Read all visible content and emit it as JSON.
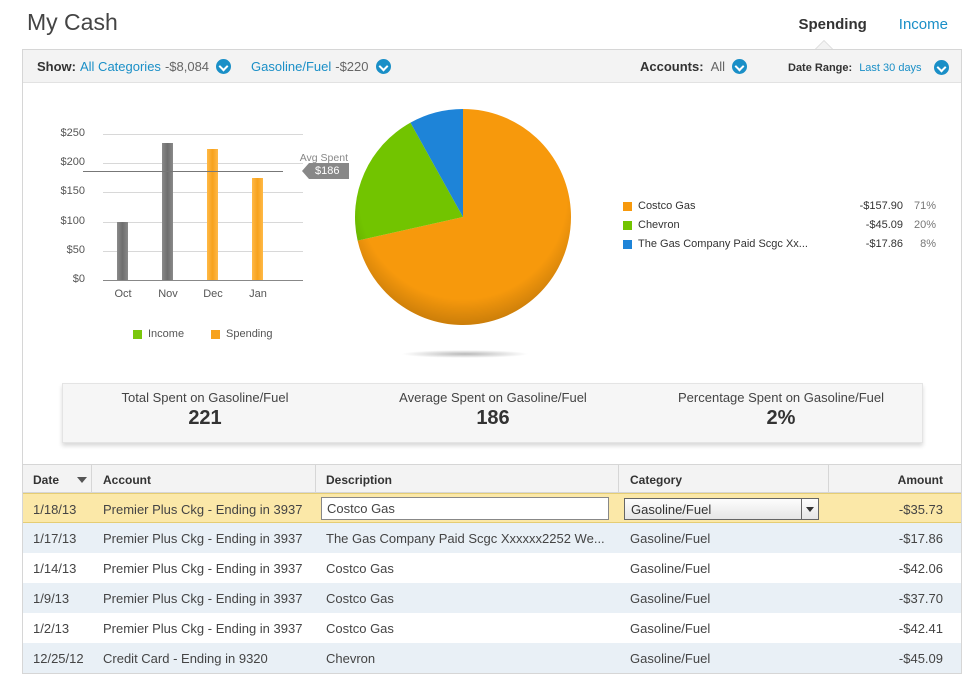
{
  "header": {
    "title": "My Cash",
    "tabs": [
      {
        "label": "Spending",
        "active": true
      },
      {
        "label": "Income",
        "active": false
      }
    ]
  },
  "filters": {
    "show_label": "Show:",
    "category": "All Categories",
    "category_amount": "-$8,084",
    "subcategory": "Gasoline/Fuel",
    "subcategory_amount": "-$220",
    "accounts_label": "Accounts:",
    "accounts_value": "All",
    "date_range_label": "Date Range:",
    "date_range_value": "Last 30 days"
  },
  "chart_data": [
    {
      "type": "bar",
      "categories": [
        "Oct",
        "Nov",
        "Dec",
        "Jan"
      ],
      "series": [
        {
          "name": "Income",
          "values": [
            100,
            235,
            null,
            null
          ]
        },
        {
          "name": "Spending",
          "values": [
            null,
            null,
            225,
            175
          ]
        }
      ],
      "yticks": [
        "$250",
        "$200",
        "$150",
        "$100",
        "$50",
        "$0"
      ],
      "ylim": [
        0,
        250
      ],
      "reference_line": {
        "label": "Avg Spent",
        "value": 186,
        "value_label": "$186"
      },
      "grid": true,
      "legend_position": "bottom",
      "colors": {
        "Income": "#7ac70c",
        "Spending": "#f7a21c"
      },
      "bar_colors": [
        "#7a7a7a",
        "#7a7a7a",
        "#f7a21c",
        "#f7a21c"
      ]
    },
    {
      "type": "pie",
      "slices": [
        {
          "label": "Costco Gas",
          "value": 157.9,
          "amount": "-$157.90",
          "percent": "71%",
          "color": "#f7990c"
        },
        {
          "label": "Chevron",
          "value": 45.09,
          "amount": "-$45.09",
          "percent": "20%",
          "color": "#72c400"
        },
        {
          "label": "The Gas Company Paid Scgc Xx...",
          "value": 17.86,
          "amount": "-$17.86",
          "percent": "8%",
          "color": "#1e84d8"
        }
      ],
      "legend_position": "right"
    }
  ],
  "summary": [
    {
      "label": "Total Spent on Gasoline/Fuel",
      "value": "221"
    },
    {
      "label": "Average Spent on Gasoline/Fuel",
      "value": "186"
    },
    {
      "label": "Percentage Spent on Gasoline/Fuel",
      "value": "2%"
    }
  ],
  "table": {
    "columns": [
      "Date",
      "Account",
      "Description",
      "Category",
      "Amount"
    ],
    "rows": [
      {
        "date": "1/18/13",
        "account": "Premier Plus Ckg - Ending in 3937",
        "description": "Costco Gas",
        "category": "Gasoline/Fuel",
        "amount": "-$35.73"
      },
      {
        "date": "1/17/13",
        "account": "Premier Plus Ckg - Ending in 3937",
        "description": "The Gas Company Paid Scgc Xxxxxx2252 We...",
        "category": "Gasoline/Fuel",
        "amount": "-$17.86"
      },
      {
        "date": "1/14/13",
        "account": "Premier Plus Ckg - Ending in 3937",
        "description": "Costco Gas",
        "category": "Gasoline/Fuel",
        "amount": "-$42.06"
      },
      {
        "date": "1/9/13",
        "account": "Premier Plus Ckg - Ending in 3937",
        "description": "Costco Gas",
        "category": "Gasoline/Fuel",
        "amount": "-$37.70"
      },
      {
        "date": "1/2/13",
        "account": "Premier Plus Ckg - Ending in 3937",
        "description": "Costco Gas",
        "category": "Gasoline/Fuel",
        "amount": "-$42.41"
      },
      {
        "date": "12/25/12",
        "account": "Credit Card - Ending in 9320",
        "description": "Chevron",
        "category": "Gasoline/Fuel",
        "amount": "-$45.09"
      }
    ]
  }
}
